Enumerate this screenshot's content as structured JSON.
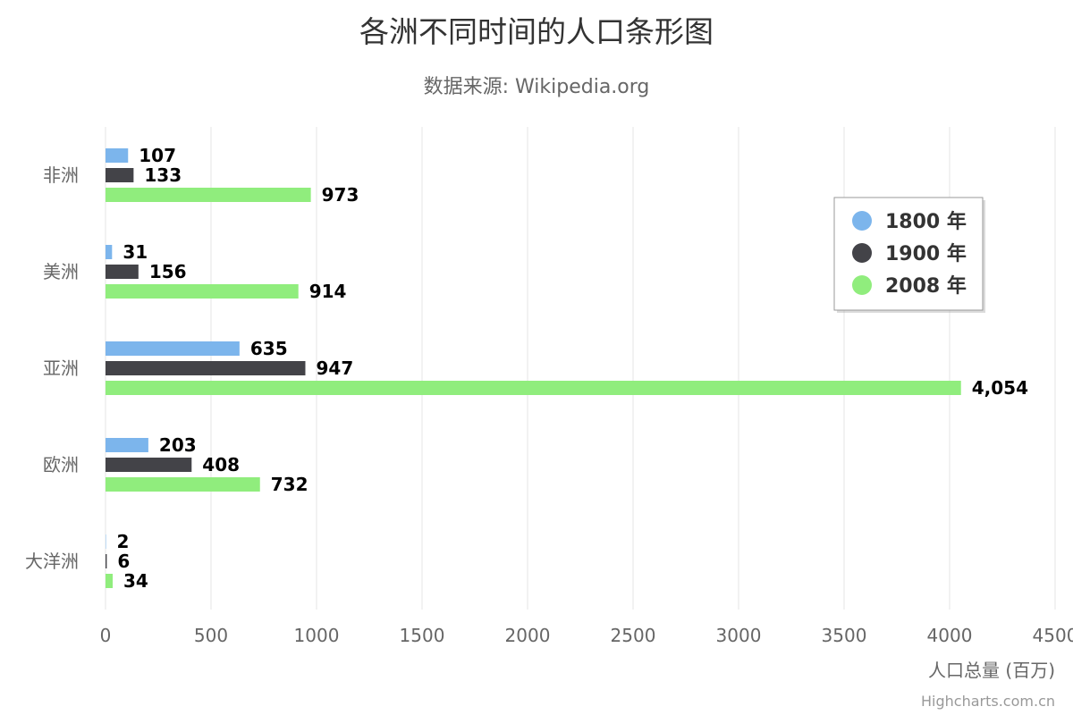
{
  "chart_data": {
    "type": "bar",
    "orientation": "horizontal",
    "title": "各洲不同时间的人口条形图",
    "subtitle": "数据来源: Wikipedia.org",
    "categories": [
      "非洲",
      "美洲",
      "亚洲",
      "欧洲",
      "大洋洲"
    ],
    "series": [
      {
        "name": "1800 年",
        "color": "#7cb5ec",
        "values": [
          107,
          31,
          635,
          203,
          2
        ],
        "labels": [
          "107",
          "31",
          "635",
          "203",
          "2"
        ]
      },
      {
        "name": "1900 年",
        "color": "#434348",
        "values": [
          133,
          156,
          947,
          408,
          6
        ],
        "labels": [
          "133",
          "156",
          "947",
          "408",
          "6"
        ]
      },
      {
        "name": "2008 年",
        "color": "#90ed7d",
        "values": [
          973,
          914,
          4054,
          732,
          34
        ],
        "labels": [
          "973",
          "914",
          "4,054",
          "732",
          "34"
        ]
      }
    ],
    "xlabel": "",
    "ylabel": "人口总量 (百万)",
    "ylim": [
      0,
      4500
    ],
    "ticks": [
      "0",
      "500",
      "1000",
      "1500",
      "2000",
      "2500",
      "3000",
      "3500",
      "4000",
      "4500"
    ],
    "grid": true,
    "legend_position": "right-top",
    "credits": "Highcharts.com.cn"
  }
}
